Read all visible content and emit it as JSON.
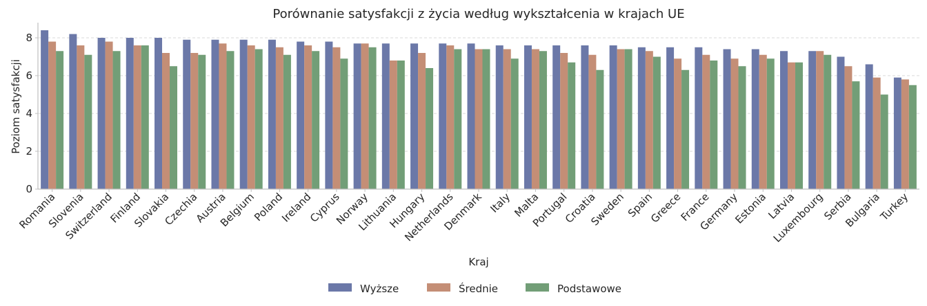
{
  "chart_data": {
    "type": "bar",
    "title": "Porównanie satysfakcji z życia według wykształcenia w krajach UE",
    "xlabel": "Kraj",
    "ylabel": "Poziom satysfakcji",
    "ylim": [
      0,
      8.8
    ],
    "yticks": [
      0,
      2,
      4,
      6,
      8
    ],
    "grid": "horizontal-dashed",
    "legend": "bottom-center",
    "categories": [
      "Romania",
      "Slovenia",
      "Switzerland",
      "Finland",
      "Slovakia",
      "Czechia",
      "Austria",
      "Belgium",
      "Poland",
      "Ireland",
      "Cyprus",
      "Norway",
      "Lithuania",
      "Hungary",
      "Netherlands",
      "Denmark",
      "Italy",
      "Malta",
      "Portugal",
      "Croatia",
      "Sweden",
      "Spain",
      "Greece",
      "France",
      "Germany",
      "Estonia",
      "Latvia",
      "Luxembourg",
      "Serbia",
      "Bulgaria",
      "Turkey"
    ],
    "series": [
      {
        "name": "Wyższe",
        "color": "#6b78a8",
        "values": [
          8.4,
          8.2,
          8.0,
          8.0,
          8.0,
          7.9,
          7.9,
          7.9,
          7.9,
          7.8,
          7.8,
          7.7,
          7.7,
          7.7,
          7.7,
          7.7,
          7.6,
          7.6,
          7.6,
          7.6,
          7.6,
          7.5,
          7.5,
          7.5,
          7.4,
          7.4,
          7.3,
          7.3,
          7.0,
          6.6,
          5.9
        ]
      },
      {
        "name": "Średnie",
        "color": "#c48e76",
        "values": [
          7.8,
          7.6,
          7.8,
          7.6,
          7.2,
          7.2,
          7.7,
          7.6,
          7.5,
          7.6,
          7.5,
          7.7,
          6.8,
          7.2,
          7.6,
          7.4,
          7.4,
          7.4,
          7.2,
          7.1,
          7.4,
          7.3,
          6.9,
          7.1,
          6.9,
          7.1,
          6.7,
          7.3,
          6.5,
          5.9,
          5.8
        ]
      },
      {
        "name": "Podstawowe",
        "color": "#729e77",
        "values": [
          7.3,
          7.1,
          7.3,
          7.6,
          6.5,
          7.1,
          7.3,
          7.4,
          7.1,
          7.3,
          6.9,
          7.5,
          6.8,
          6.4,
          7.4,
          7.4,
          6.9,
          7.3,
          6.7,
          6.3,
          7.4,
          7.0,
          6.3,
          6.8,
          6.5,
          6.9,
          6.7,
          7.1,
          5.7,
          5.0,
          5.5
        ]
      }
    ]
  }
}
